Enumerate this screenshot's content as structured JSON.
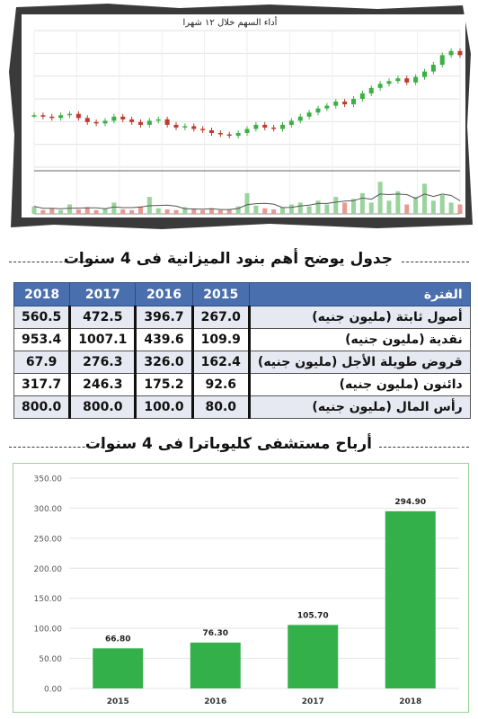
{
  "stock_chart": {
    "title": "أداء السهم خلال ١٢ شهرا"
  },
  "balance_section": {
    "title": "جدول يوضح  أهم بنود الميزانية فى 4 سنوات"
  },
  "balance_table": {
    "header": {
      "label": "الفترة",
      "years": [
        "2015",
        "2016",
        "2017",
        "2018"
      ]
    },
    "rows": [
      {
        "label": "أصول ثابتة (مليون جنيه)",
        "values": [
          "267.0",
          "396.7",
          "472.5",
          "560.5"
        ]
      },
      {
        "label": "نقدية (مليون جنيه)",
        "values": [
          "109.9",
          "439.6",
          "1007.1",
          "953.4"
        ]
      },
      {
        "label": "قروض طويلة الأجل (مليون جنيه)",
        "values": [
          "162.4",
          "326.0",
          "276.3",
          "67.9"
        ]
      },
      {
        "label": "دائنون (مليون جنيه)",
        "values": [
          "92.6",
          "175.2",
          "246.3",
          "317.7"
        ]
      },
      {
        "label": "رأس المال (مليون جنيه)",
        "values": [
          "80.0",
          "100.0",
          "800.0",
          "800.0"
        ]
      }
    ]
  },
  "profit_section": {
    "title": "أرباح مستشفى كليوباترا فى 4 سنوات"
  },
  "chart_data": [
    {
      "type": "line",
      "title": "أداء السهم خلال ١٢ شهرا",
      "x": [
        0,
        10,
        20,
        30,
        40,
        50,
        60,
        70,
        80,
        90,
        100,
        110,
        120,
        130,
        140,
        150,
        160,
        170,
        180,
        190,
        200,
        210,
        220,
        230,
        240,
        250,
        260,
        270,
        280,
        290,
        300,
        310,
        320,
        330,
        340,
        350,
        360,
        370,
        380,
        390,
        400,
        410,
        420,
        430,
        440,
        450,
        460,
        470,
        480
      ],
      "values": [
        0.38,
        0.37,
        0.36,
        0.38,
        0.39,
        0.36,
        0.33,
        0.32,
        0.34,
        0.37,
        0.35,
        0.33,
        0.31,
        0.34,
        0.35,
        0.31,
        0.29,
        0.3,
        0.28,
        0.27,
        0.25,
        0.24,
        0.23,
        0.25,
        0.28,
        0.31,
        0.29,
        0.28,
        0.31,
        0.34,
        0.37,
        0.4,
        0.43,
        0.45,
        0.48,
        0.46,
        0.5,
        0.54,
        0.58,
        0.61,
        0.63,
        0.65,
        0.62,
        0.66,
        0.7,
        0.75,
        0.82,
        0.85,
        0.82
      ],
      "volume": [
        0.2,
        0.1,
        0.15,
        0.1,
        0.25,
        0.12,
        0.18,
        0.1,
        0.15,
        0.3,
        0.12,
        0.1,
        0.2,
        0.45,
        0.15,
        0.12,
        0.1,
        0.18,
        0.12,
        0.1,
        0.15,
        0.1,
        0.12,
        0.2,
        0.55,
        0.22,
        0.15,
        0.12,
        0.18,
        0.25,
        0.3,
        0.2,
        0.35,
        0.25,
        0.45,
        0.3,
        0.4,
        0.55,
        0.3,
        0.85,
        0.35,
        0.6,
        0.25,
        0.45,
        0.8,
        0.35,
        0.5,
        0.3,
        0.25
      ],
      "grid": true
    },
    {
      "type": "bar",
      "categories": [
        "2015",
        "2016",
        "2017",
        "2018"
      ],
      "values": [
        66.8,
        76.3,
        105.7,
        294.9
      ],
      "data_labels": [
        "66.80",
        "76.30",
        "105.70",
        "294.90"
      ],
      "yticks": [
        "0.00",
        "50.00",
        "100.00",
        "150.00",
        "200.00",
        "250.00",
        "300.00",
        "350.00"
      ],
      "ylim": [
        0,
        350
      ],
      "bar_color": "#33b04a",
      "grid": true
    }
  ]
}
